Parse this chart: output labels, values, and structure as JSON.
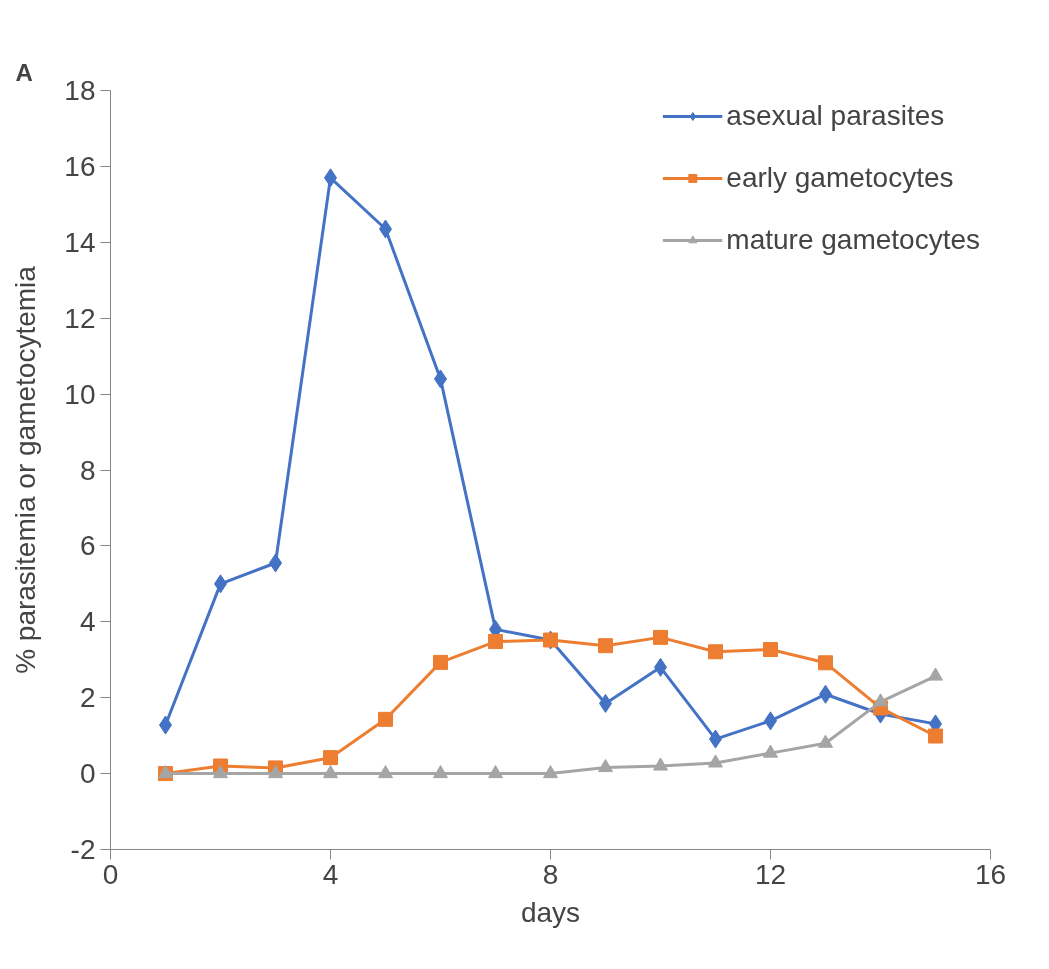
{
  "chart_data": {
    "type": "line",
    "title": "A",
    "xlabel": "days",
    "ylabel": "% parasitemia or gametocytemia",
    "x": [
      1,
      2,
      3,
      4,
      5,
      6,
      7,
      8,
      9,
      10,
      11,
      12,
      13,
      14,
      15
    ],
    "series": [
      {
        "name": "asexual parasites",
        "color": "#4472c4",
        "marker": "diamond",
        "values": [
          1.28,
          5.0,
          5.55,
          15.7,
          14.35,
          10.4,
          3.8,
          3.52,
          1.85,
          2.8,
          0.91,
          1.39,
          2.09,
          1.57,
          1.31
        ]
      },
      {
        "name": "early gametocytes",
        "color": "#ed7d31",
        "marker": "square",
        "values": [
          0,
          0.2,
          0.15,
          0.42,
          1.43,
          2.93,
          3.48,
          3.52,
          3.37,
          3.59,
          3.21,
          3.27,
          2.92,
          1.73,
          0.99
        ]
      },
      {
        "name": "mature gametocytes",
        "color": "#a5a5a5",
        "marker": "triangle",
        "values": [
          0,
          0,
          0,
          0,
          0,
          0,
          0,
          0,
          0.16,
          0.2,
          0.28,
          0.54,
          0.8,
          1.89,
          2.57
        ]
      }
    ],
    "xlim": [
      0,
      16
    ],
    "xticks": [
      0,
      4,
      8,
      12,
      16
    ],
    "ylim": [
      -2,
      18
    ],
    "yticks": [
      -2,
      0,
      2,
      4,
      6,
      8,
      10,
      12,
      14,
      16,
      18
    ],
    "grid": false,
    "legend": "top right"
  }
}
